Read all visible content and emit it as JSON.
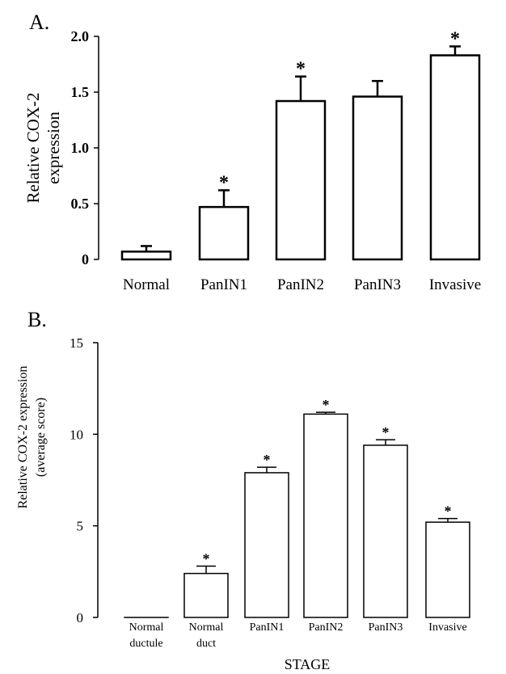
{
  "chart_data": [
    {
      "type": "bar",
      "panel_label": "A.",
      "categories": [
        "Normal",
        "PanIN1",
        "PanIN2",
        "PanIN3",
        "Invasive"
      ],
      "values": [
        0.07,
        0.47,
        1.42,
        1.46,
        1.83
      ],
      "errors": [
        0.05,
        0.15,
        0.22,
        0.14,
        0.08
      ],
      "significance": [
        "",
        "*",
        "*",
        "",
        "*"
      ],
      "ylabel_line1": "Relative COX-2",
      "ylabel_line2": "expression",
      "xlabel": "",
      "ylim": [
        0,
        2.0
      ],
      "yticks": [
        "0",
        "0.5",
        "1.0",
        "1.5",
        "2.0"
      ],
      "ytick_values": [
        0,
        0.5,
        1.0,
        1.5,
        2.0
      ]
    },
    {
      "type": "bar",
      "panel_label": "B.",
      "categories": [
        [
          "Normal",
          "ductule"
        ],
        [
          "Normal",
          "duct"
        ],
        [
          "PanIN1"
        ],
        [
          "PanIN2"
        ],
        [
          "PanIN3"
        ],
        [
          "Invasive"
        ]
      ],
      "values": [
        0.0,
        2.4,
        7.9,
        11.1,
        9.4,
        5.2
      ],
      "errors": [
        0.0,
        0.4,
        0.3,
        0.1,
        0.3,
        0.2
      ],
      "significance": [
        "",
        "*",
        "*",
        "*",
        "*",
        "*"
      ],
      "ylabel_line1": "Relative COX-2 expression",
      "ylabel_line2": "(average score)",
      "xlabel": "STAGE",
      "ylim": [
        0,
        15
      ],
      "yticks": [
        "0",
        "5",
        "10",
        "15"
      ],
      "ytick_values": [
        0,
        5,
        10,
        15
      ]
    }
  ]
}
